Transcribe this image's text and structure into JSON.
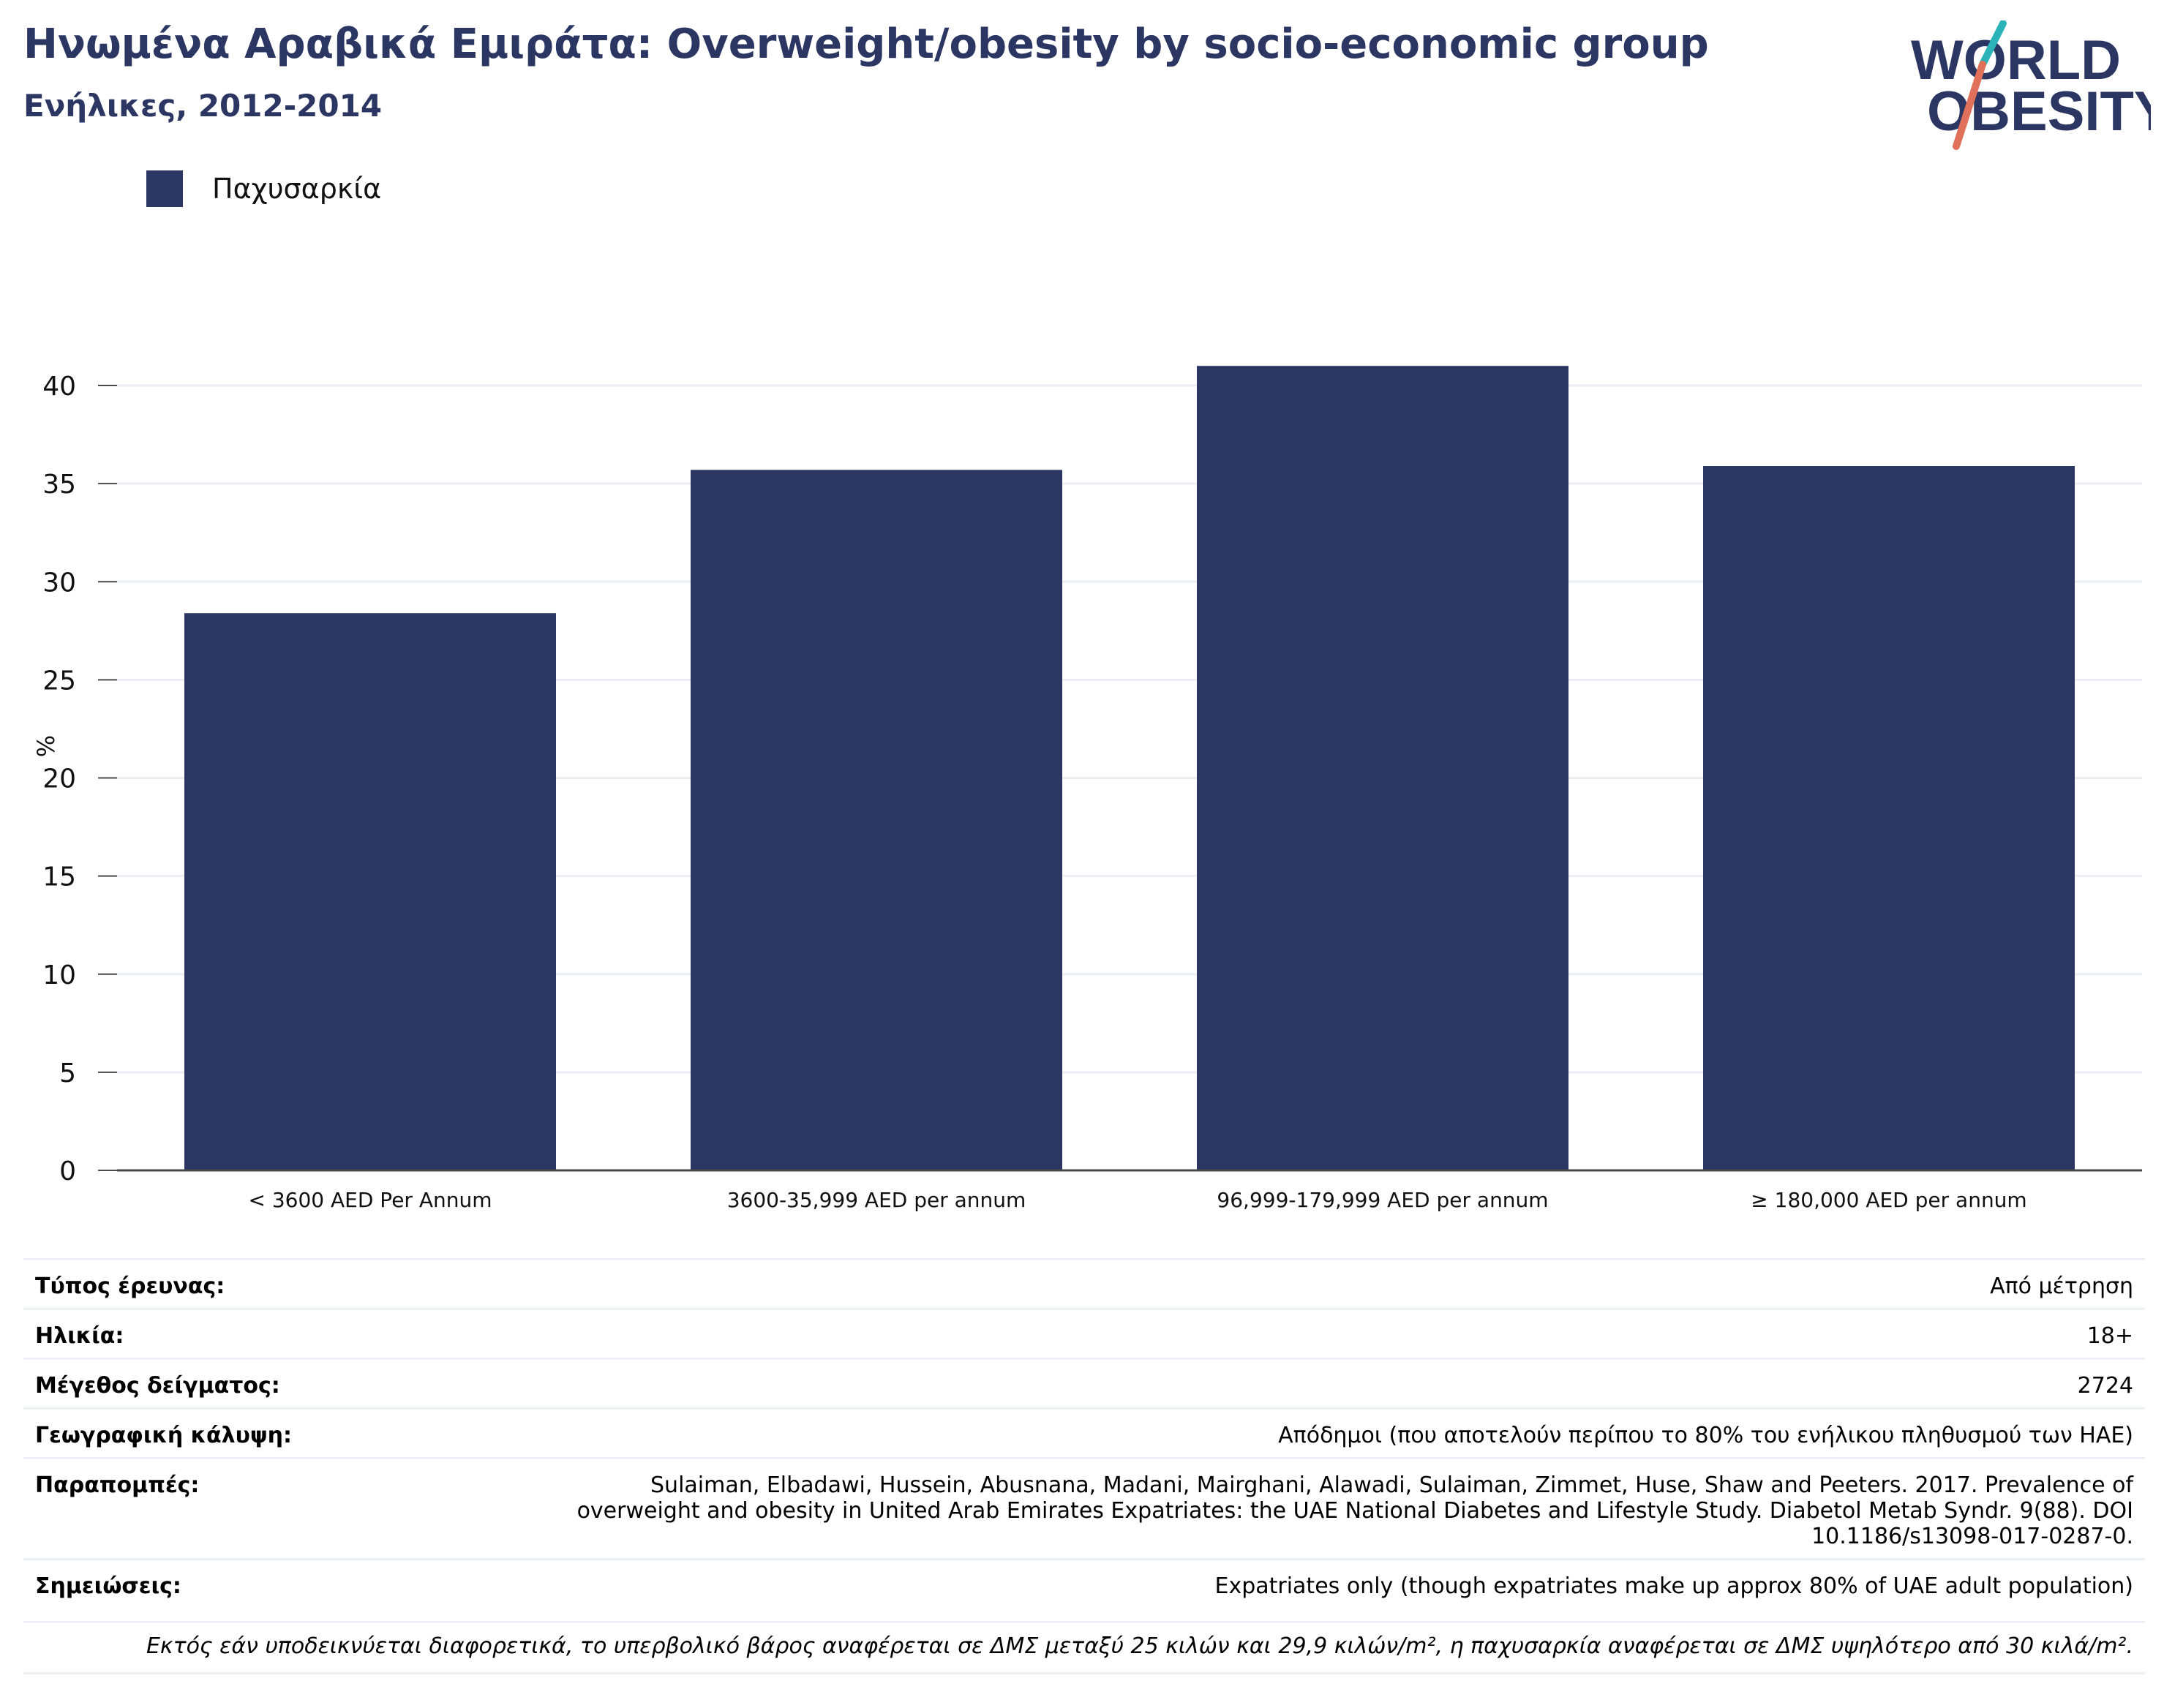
{
  "header": {
    "title": "Ηνωμένα Αραβικά Εμιράτα: Overweight/obesity by socio-economic group",
    "subtitle": "Ενήλικες, 2012-2014"
  },
  "logo": {
    "line1": "WORLD",
    "line2": "OBESITY",
    "colors": {
      "text": "#2b3663",
      "slash_top": "#2bb3b8",
      "slash_bottom": "#e0705a"
    }
  },
  "colors": {
    "bar": "#2b3663",
    "grid": "#eceef4",
    "axis": "#4a4a4a"
  },
  "chart_data": {
    "type": "bar",
    "categories": [
      "< 3600 AED Per Annum",
      "3600-35,999 AED per annum",
      "96,999-179,999 AED per annum",
      "≥ 180,000 AED per annum"
    ],
    "series": [
      {
        "name": "Παχυσαρκία",
        "values": [
          28.4,
          35.7,
          41.0,
          35.9
        ]
      }
    ],
    "ylabel": "%",
    "xlabel": "",
    "ylim": [
      0,
      42.5
    ],
    "yticks": [
      0,
      5,
      10,
      15,
      20,
      25,
      30,
      35,
      40
    ],
    "grid": true,
    "legend_position": "top-left"
  },
  "meta": [
    {
      "label": "Τύπος έρευνας:",
      "value": "Από μέτρηση"
    },
    {
      "label": "Ηλικία:",
      "value": "18+"
    },
    {
      "label": "Μέγεθος δείγματος:",
      "value": "2724"
    },
    {
      "label": "Γεωγραφική κάλυψη:",
      "value": "Απόδημοι (που αποτελούν περίπου το 80% του ενήλικου πληθυσμού των ΗΑΕ)"
    },
    {
      "label": "Παραπομπές:",
      "value": "Sulaiman, Elbadawi, Hussein, Abusnana, Madani, Mairghani, Alawadi, Sulaiman, Zimmet, Huse, Shaw and Peeters. 2017. Prevalence of overweight and obesity in United Arab Emirates Expatriates: the UAE National Diabetes and Lifestyle Study. Diabetol Metab Syndr. 9(88). DOI 10.1186/s13098-017-0287-0."
    },
    {
      "label": "Σημειώσεις:",
      "value": "Expatriates only (though expatriates make up approx 80% of UAE adult population)"
    }
  ],
  "footnote": "Εκτός εάν υποδεικνύεται διαφορετικά, το υπερβολικό βάρος αναφέρεται σε ΔΜΣ μεταξύ 25 κιλών και 29,9 κιλών/m², η παχυσαρκία αναφέρεται σε ΔΜΣ υψηλότερο από 30 κιλά/m²."
}
